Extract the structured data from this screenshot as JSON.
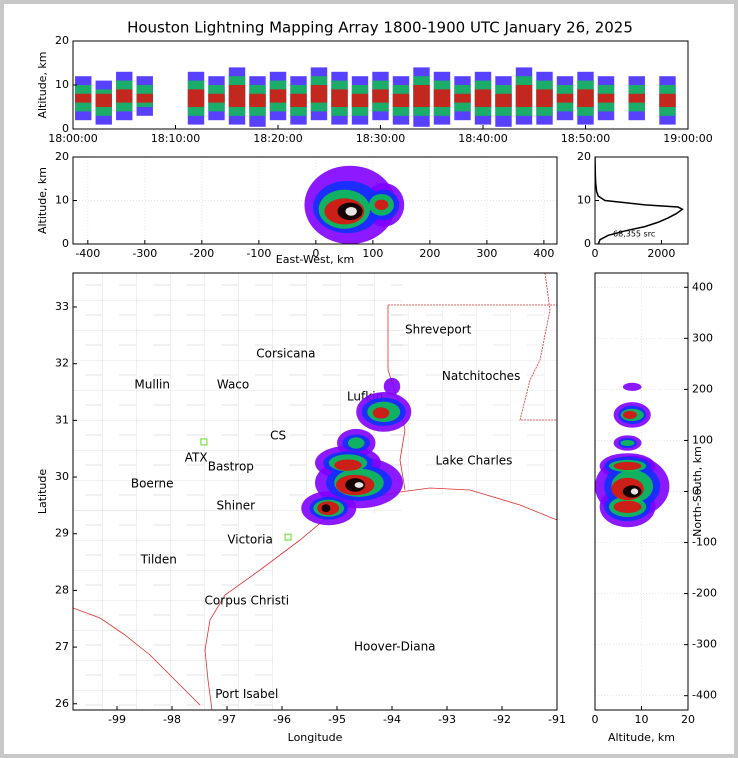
{
  "chart_data": [
    {
      "type": "range",
      "title": "Houston Lightning Mapping Array 1800-1900 UTC January 26, 2025",
      "ylabel": "Altitude, km",
      "xlim": [
        0,
        60
      ],
      "xticks": [
        {
          "value": 0,
          "label": "18:00:00"
        },
        {
          "value": 10,
          "label": "18:10:00"
        },
        {
          "value": 20,
          "label": "18:20:00"
        },
        {
          "value": 30,
          "label": "18:30:00"
        },
        {
          "value": 40,
          "label": "18:40:00"
        },
        {
          "value": 50,
          "label": "18:50:00"
        },
        {
          "value": 60,
          "label": "19:00:00"
        }
      ],
      "ylim": [
        0,
        20
      ],
      "yticks": [
        0,
        10,
        20
      ],
      "x": [
        1,
        3,
        5,
        7,
        12,
        14,
        16,
        18,
        20,
        22,
        24,
        26,
        28,
        30,
        32,
        34,
        36,
        38,
        40,
        42,
        44,
        46,
        48,
        50,
        52,
        55,
        58
      ],
      "series": [
        {
          "color": "#3a20ff",
          "low": [
            2,
            1,
            2,
            3,
            1,
            2,
            1,
            0.5,
            2,
            1,
            2,
            1,
            1,
            2,
            1,
            0.5,
            1,
            2,
            1,
            0.5,
            1,
            1,
            2,
            1,
            2,
            2,
            1
          ],
          "high": [
            12,
            11,
            13,
            12,
            13,
            12,
            14,
            12,
            13,
            12,
            14,
            13,
            12,
            13,
            12,
            14,
            13,
            12,
            13,
            12,
            14,
            13,
            12,
            13,
            12,
            12,
            12
          ]
        },
        {
          "color": "#10c050",
          "low": [
            4,
            3,
            4,
            5,
            3,
            4,
            3,
            3,
            4,
            3,
            4,
            3,
            3,
            4,
            3,
            3,
            3,
            4,
            3,
            3,
            3,
            3,
            4,
            3,
            4,
            4,
            3
          ],
          "high": [
            10,
            9,
            11,
            10,
            11,
            10,
            12,
            10,
            11,
            10,
            12,
            11,
            10,
            11,
            10,
            12,
            11,
            10,
            11,
            10,
            12,
            11,
            10,
            11,
            10,
            10,
            10
          ]
        },
        {
          "color": "#e01010",
          "low": [
            6,
            5,
            6,
            6,
            5,
            6,
            5,
            5,
            6,
            5,
            6,
            5,
            5,
            6,
            5,
            5,
            5,
            6,
            5,
            5,
            5,
            5,
            6,
            5,
            6,
            6,
            5
          ],
          "high": [
            8,
            8,
            9,
            8,
            9,
            8,
            10,
            8,
            9,
            8,
            10,
            9,
            8,
            9,
            8,
            10,
            9,
            8,
            9,
            8,
            10,
            9,
            8,
            9,
            8,
            8,
            8
          ]
        }
      ]
    },
    {
      "type": "blobs",
      "xlabel": "East-West, km",
      "ylabel": "Altitude, km",
      "grid": true,
      "xlim": [
        -426,
        423
      ],
      "xticks": [
        -400,
        -300,
        -200,
        -100,
        0,
        100,
        200,
        300,
        400
      ],
      "ylim": [
        0,
        20
      ],
      "yticks": [
        0,
        10,
        20
      ],
      "series": [
        {
          "color": "#8000ff",
          "x": [
            60,
            120
          ],
          "values": [
            9,
            9
          ],
          "rx": [
            80,
            35
          ],
          "ry": [
            9,
            5
          ]
        },
        {
          "color": "#1030ff",
          "x": [
            55,
            118
          ],
          "values": [
            8.5,
            9
          ],
          "rx": [
            60,
            28
          ],
          "ry": [
            6,
            3.5
          ]
        },
        {
          "color": "#10c050",
          "x": [
            50,
            115
          ],
          "values": [
            8,
            9
          ],
          "rx": [
            45,
            22
          ],
          "ry": [
            4.5,
            2.5
          ]
        },
        {
          "color": "#e01010",
          "x": [
            50,
            115
          ],
          "values": [
            7.5,
            9
          ],
          "rx": [
            35,
            12
          ],
          "ry": [
            3,
            1.2
          ]
        },
        {
          "color": "#000000",
          "x": [
            60
          ],
          "values": [
            7.5
          ],
          "rx": [
            22
          ],
          "ry": [
            2
          ]
        },
        {
          "color": "#ffffff",
          "x": [
            62
          ],
          "values": [
            7.5
          ],
          "rx": [
            10
          ],
          "ry": [
            1
          ]
        }
      ]
    },
    {
      "type": "line",
      "annotation": "68,355 src",
      "color": "#000000",
      "xlim": [
        0,
        2800
      ],
      "xticks": [
        0,
        2000
      ],
      "ylim": [
        0,
        20
      ],
      "yticks": [
        0,
        10,
        20
      ],
      "x": [
        100,
        150,
        400,
        900,
        1500,
        1900,
        2200,
        2450,
        2630,
        2500,
        1500,
        300,
        100,
        50,
        20,
        10,
        5,
        0
      ],
      "values": [
        0,
        1,
        2,
        3,
        4,
        5,
        6,
        7,
        8,
        8.5,
        9,
        10,
        11,
        12,
        14,
        16,
        18,
        20
      ]
    },
    {
      "type": "map",
      "xlabel": "Longitude",
      "ylabel": "Latitude",
      "xlim": [
        -99.8,
        -91
      ],
      "xticks": [
        -99,
        -98,
        -97,
        -96,
        -95,
        -94,
        -93,
        -92,
        -91
      ],
      "ylim": [
        25.89,
        33.6
      ],
      "yticks": [
        26,
        27,
        28,
        29,
        30,
        31,
        32,
        33
      ],
      "labels": [
        {
          "text": "Shreveport",
          "x": -93.16,
          "y": 32.59,
          "color": "#000000"
        },
        {
          "text": "Corsicana",
          "x": -95.93,
          "y": 32.17,
          "color": "#000000"
        },
        {
          "text": "Mullin",
          "x": -98.36,
          "y": 31.62,
          "color": "#f08040"
        },
        {
          "text": "Waco",
          "x": -96.89,
          "y": 31.62,
          "color": "#000000"
        },
        {
          "text": "Natchitoches",
          "x": -92.38,
          "y": 31.77,
          "color": "#000000"
        },
        {
          "text": "Lufkin",
          "x": -94.49,
          "y": 31.41,
          "color": "#000000"
        },
        {
          "text": "CS",
          "x": -96.07,
          "y": 30.72,
          "color": "#802020"
        },
        {
          "text": "ATX",
          "x": -97.56,
          "y": 30.34,
          "color": "#f08040"
        },
        {
          "text": "Bastrop",
          "x": -96.93,
          "y": 30.18,
          "color": "#000000"
        },
        {
          "text": "Lake Charles",
          "x": -92.51,
          "y": 30.28,
          "color": "#000000"
        },
        {
          "text": "Boerne",
          "x": -98.36,
          "y": 29.88,
          "color": "#000000"
        },
        {
          "text": "Shiner",
          "x": -96.84,
          "y": 29.49,
          "color": "#000000"
        },
        {
          "text": "Victoria",
          "x": -96.58,
          "y": 28.89,
          "color": "#000000"
        },
        {
          "text": "Tilden",
          "x": -98.24,
          "y": 28.54,
          "color": "#000000"
        },
        {
          "text": "Corpus Christi",
          "x": -96.64,
          "y": 27.81,
          "color": "#000000"
        },
        {
          "text": "Hoover-Diana",
          "x": -93.95,
          "y": 27.0,
          "color": "#1010e0"
        },
        {
          "text": "Port Isabel",
          "x": -96.64,
          "y": 26.16,
          "color": "#000000"
        }
      ],
      "stations": {
        "color": "#60e020",
        "x": [
          -97.42,
          -95.89
        ],
        "values": [
          30.62,
          28.94
        ]
      },
      "series": [
        {
          "color": "#8000ff",
          "x": [
            -94.6,
            -94.8,
            -95.15,
            -94.15,
            -94.65,
            -94.0
          ],
          "values": [
            29.9,
            30.25,
            29.45,
            31.15,
            30.6,
            31.6
          ],
          "rx": [
            0.8,
            0.6,
            0.5,
            0.5,
            0.35,
            0.15
          ],
          "ry": [
            0.45,
            0.3,
            0.3,
            0.35,
            0.25,
            0.15
          ]
        },
        {
          "color": "#1030ff",
          "x": [
            -94.6,
            -94.8,
            -95.15,
            -94.15,
            -94.65
          ],
          "values": [
            29.9,
            30.25,
            29.45,
            31.15,
            30.6
          ],
          "rx": [
            0.6,
            0.45,
            0.35,
            0.4,
            0.25
          ],
          "ry": [
            0.32,
            0.2,
            0.2,
            0.25,
            0.15
          ]
        },
        {
          "color": "#10c050",
          "x": [
            -94.6,
            -94.8,
            -95.15,
            -94.15,
            -94.65
          ],
          "values": [
            29.9,
            30.25,
            29.45,
            31.15,
            30.6
          ],
          "rx": [
            0.45,
            0.35,
            0.28,
            0.3,
            0.15
          ],
          "ry": [
            0.25,
            0.15,
            0.15,
            0.18,
            0.1
          ]
        },
        {
          "color": "#e01010",
          "x": [
            -94.67,
            -94.8,
            -95.16,
            -94.2
          ],
          "values": [
            29.86,
            30.21,
            29.45,
            31.13
          ],
          "rx": [
            0.35,
            0.25,
            0.2,
            0.15
          ],
          "ry": [
            0.18,
            0.1,
            0.12,
            0.1
          ]
        },
        {
          "color": "#000000",
          "x": [
            -94.67,
            -95.2
          ],
          "values": [
            29.86,
            29.45
          ],
          "rx": [
            0.18,
            0.08
          ],
          "ry": [
            0.12,
            0.07
          ]
        },
        {
          "color": "#ffffff",
          "x": [
            -94.6
          ],
          "values": [
            29.86
          ],
          "rx": [
            0.08
          ],
          "ry": [
            0.05
          ]
        }
      ]
    },
    {
      "type": "blobs",
      "xlabel": "Altitude, km",
      "ylabel": "North-South, km",
      "grid": true,
      "xlim": [
        0,
        20
      ],
      "xticks": [
        0,
        10,
        20
      ],
      "ylim": [
        -428,
        428
      ],
      "yticks": [
        -400,
        -300,
        -200,
        -100,
        0,
        100,
        200,
        300,
        400
      ],
      "series": [
        {
          "color": "#8000ff",
          "x": [
            8,
            7,
            8,
            7,
            7,
            8
          ],
          "values": [
            10,
            50,
            150,
            95,
            -30,
            205
          ],
          "rx": [
            8,
            6,
            4,
            3,
            6,
            2
          ],
          "ry": [
            60,
            25,
            25,
            15,
            40,
            8
          ]
        },
        {
          "color": "#1030ff",
          "x": [
            8,
            7,
            8,
            7,
            7
          ],
          "values": [
            10,
            50,
            150,
            95,
            -30
          ],
          "rx": [
            6,
            5,
            3,
            2,
            5
          ],
          "ry": [
            45,
            18,
            18,
            10,
            28
          ]
        },
        {
          "color": "#10c050",
          "x": [
            8,
            7,
            8,
            7,
            7
          ],
          "values": [
            10,
            50,
            150,
            95,
            -30
          ],
          "rx": [
            4.5,
            4,
            2.5,
            1.5,
            4
          ],
          "ry": [
            32,
            12,
            12,
            6,
            20
          ]
        },
        {
          "color": "#e01010",
          "x": [
            7,
            7,
            7.5,
            7
          ],
          "values": [
            5,
            50,
            150,
            -30
          ],
          "rx": [
            3.5,
            3,
            1.5,
            3
          ],
          "ry": [
            22,
            8,
            8,
            12
          ]
        },
        {
          "color": "#000000",
          "x": [
            8
          ],
          "values": [
            0
          ],
          "rx": [
            2
          ],
          "ry": [
            12
          ]
        },
        {
          "color": "#ffffff",
          "x": [
            8.5
          ],
          "values": [
            0
          ],
          "rx": [
            0.8
          ],
          "ry": [
            6
          ]
        }
      ]
    }
  ]
}
